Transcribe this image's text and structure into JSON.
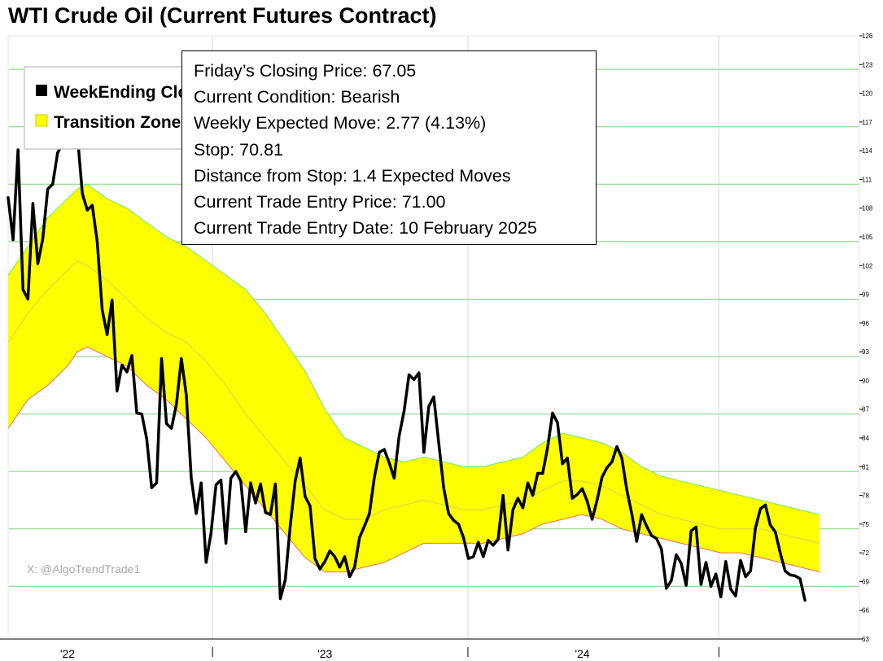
{
  "colors": {
    "price_line": "#000000",
    "zone_fill": "#ffff00",
    "zone_upper_edge": "#6ee86e",
    "zone_lower_edge": "#f06a6a",
    "zone_mid": "#d8d84a",
    "gridline": "#7fcf7f",
    "year_gridline": "#dadada",
    "legend_border": "#c8c8c8",
    "watermark": "#a8a8a8"
  },
  "watermark": "X: @AlgoTrendTrade1",
  "info": {
    "closing_price": "Friday’s Closing Price: 67.05",
    "condition": "Current Condition: Bearish",
    "expected_move": "Weekly Expected Move: 2.77 (4.13%)",
    "stop": "Stop: 70.81",
    "distance": "Distance from Stop: 1.4 Expected Moves",
    "entry_price": "Current Trade Entry Price: 71.00",
    "entry_date": "Current Trade Entry Date: 10 February 2025"
  },
  "chart_data": {
    "type": "line",
    "title": "WTI Crude Oil (Current Futures Contract)",
    "legend": {
      "placement": "top-left",
      "items": [
        {
          "label": "WeekEnding Close",
          "color": "#000000"
        },
        {
          "label": "Transition Zone",
          "color": "#ffff00"
        }
      ]
    },
    "ylim": [
      63,
      126
    ],
    "yticks": [
      63,
      66,
      69,
      72,
      75,
      78,
      81,
      84,
      87,
      90,
      93,
      96,
      99,
      102,
      105,
      108,
      111,
      114,
      117,
      120,
      123,
      126
    ],
    "xlim": [
      0,
      172
    ],
    "xticks": [
      {
        "x": 12,
        "label": "'22"
      },
      {
        "x": 64,
        "label": "'23"
      },
      {
        "x": 116,
        "label": "'24"
      }
    ],
    "year_lines": [
      41.3,
      92.9,
      143.6
    ],
    "grid": true,
    "series": [
      {
        "name": "WeekEnding Close",
        "values": [
          [
            0,
            109.1
          ],
          [
            1,
            104.7
          ],
          [
            2,
            114.1
          ],
          [
            3,
            99.5
          ],
          [
            4,
            98.5
          ],
          [
            5,
            108.5
          ],
          [
            6,
            102.2
          ],
          [
            7,
            104.8
          ],
          [
            8,
            110.0
          ],
          [
            9,
            110.5
          ],
          [
            10,
            113.8
          ],
          [
            11,
            114.7
          ],
          [
            12,
            117.2
          ],
          [
            13,
            118.0
          ],
          [
            14,
            115.6
          ],
          [
            15,
            109.5
          ],
          [
            16,
            107.8
          ],
          [
            17,
            108.3
          ],
          [
            18,
            104.5
          ],
          [
            19,
            97.4
          ],
          [
            20,
            94.8
          ],
          [
            21,
            98.4
          ],
          [
            22,
            88.9
          ],
          [
            23,
            91.6
          ],
          [
            24,
            90.9
          ],
          [
            25,
            92.6
          ],
          [
            26,
            86.6
          ],
          [
            27,
            86.5
          ],
          [
            28,
            83.9
          ],
          [
            29,
            78.8
          ],
          [
            30,
            79.3
          ],
          [
            31,
            92.3
          ],
          [
            32,
            85.5
          ],
          [
            33,
            85.0
          ],
          [
            34,
            87.5
          ],
          [
            35,
            92.3
          ],
          [
            36,
            88.5
          ],
          [
            37,
            79.8
          ],
          [
            38,
            76.1
          ],
          [
            39,
            79.3
          ],
          [
            40,
            71.0
          ],
          [
            41,
            74.1
          ],
          [
            42,
            79.1
          ],
          [
            43,
            79.6
          ],
          [
            44,
            73.0
          ],
          [
            45,
            79.8
          ],
          [
            46,
            80.5
          ],
          [
            47,
            79.5
          ],
          [
            48,
            74.2
          ],
          [
            49,
            79.3
          ],
          [
            50,
            77.2
          ],
          [
            51,
            79.2
          ],
          [
            52,
            76.2
          ],
          [
            53,
            76.0
          ],
          [
            54,
            79.2
          ],
          [
            55,
            67.2
          ],
          [
            56,
            69.2
          ],
          [
            57,
            74.8
          ],
          [
            58,
            79.5
          ],
          [
            59,
            81.9
          ],
          [
            60,
            77.9
          ],
          [
            61,
            76.9
          ],
          [
            62,
            71.4
          ],
          [
            63,
            70.3
          ],
          [
            64,
            71.1
          ],
          [
            65,
            72.2
          ],
          [
            66,
            71.6
          ],
          [
            67,
            70.5
          ],
          [
            68,
            71.6
          ],
          [
            69,
            69.5
          ],
          [
            70,
            70.5
          ],
          [
            71,
            73.6
          ],
          [
            72,
            74.8
          ],
          [
            73,
            76.1
          ],
          [
            74,
            79.9
          ],
          [
            75,
            82.5
          ],
          [
            76,
            82.8
          ],
          [
            77,
            81.4
          ],
          [
            78,
            79.8
          ],
          [
            79,
            84.2
          ],
          [
            80,
            86.8
          ],
          [
            81,
            90.6
          ],
          [
            82,
            90.1
          ],
          [
            83,
            90.8
          ],
          [
            84,
            82.5
          ],
          [
            85,
            87.3
          ],
          [
            86,
            88.3
          ],
          [
            87,
            83.5
          ],
          [
            88,
            78.8
          ],
          [
            89,
            76.1
          ],
          [
            90,
            75.4
          ],
          [
            91,
            75.0
          ],
          [
            92,
            73.6
          ],
          [
            93,
            71.4
          ],
          [
            94,
            71.6
          ],
          [
            95,
            73.1
          ],
          [
            96,
            71.6
          ],
          [
            97,
            73.3
          ],
          [
            98,
            72.8
          ],
          [
            99,
            73.4
          ],
          [
            100,
            78.0
          ],
          [
            101,
            72.3
          ],
          [
            102,
            76.5
          ],
          [
            103,
            77.7
          ],
          [
            104,
            76.7
          ],
          [
            105,
            79.3
          ],
          [
            106,
            78.0
          ],
          [
            107,
            80.3
          ],
          [
            108,
            80.3
          ],
          [
            109,
            83.0
          ],
          [
            110,
            86.6
          ],
          [
            111,
            85.6
          ],
          [
            112,
            81.3
          ],
          [
            113,
            81.9
          ],
          [
            114,
            77.7
          ],
          [
            115,
            78.1
          ],
          [
            116,
            78.7
          ],
          [
            117,
            77.4
          ],
          [
            118,
            75.5
          ],
          [
            119,
            77.5
          ],
          [
            120,
            79.9
          ],
          [
            121,
            80.9
          ],
          [
            122,
            81.5
          ],
          [
            123,
            83.1
          ],
          [
            124,
            81.9
          ],
          [
            125,
            78.6
          ],
          [
            126,
            76.1
          ],
          [
            127,
            73.2
          ],
          [
            128,
            76.0
          ],
          [
            129,
            74.8
          ],
          [
            130,
            73.8
          ],
          [
            131,
            73.5
          ],
          [
            132,
            72.4
          ],
          [
            133,
            68.3
          ],
          [
            134,
            69.1
          ],
          [
            135,
            71.8
          ],
          [
            136,
            70.9
          ],
          [
            137,
            68.6
          ],
          [
            138,
            74.3
          ],
          [
            139,
            74.7
          ],
          [
            140,
            68.7
          ],
          [
            141,
            71.0
          ],
          [
            142,
            68.5
          ],
          [
            143,
            69.8
          ],
          [
            144,
            67.4
          ],
          [
            145,
            71.1
          ],
          [
            146,
            68.2
          ],
          [
            147,
            67.5
          ],
          [
            148,
            71.2
          ],
          [
            149,
            69.5
          ],
          [
            150,
            70.1
          ],
          [
            151,
            74.6
          ],
          [
            152,
            76.6
          ],
          [
            153,
            77.0
          ],
          [
            154,
            74.9
          ],
          [
            155,
            74.2
          ],
          [
            156,
            72.0
          ],
          [
            157,
            70.1
          ],
          [
            158,
            69.7
          ],
          [
            159,
            69.6
          ],
          [
            160,
            69.3
          ],
          [
            161,
            67.05
          ]
        ]
      },
      {
        "name": "Transition Zone",
        "upper": [
          [
            0,
            101
          ],
          [
            4,
            104
          ],
          [
            8,
            107
          ],
          [
            12,
            109
          ],
          [
            14,
            110
          ],
          [
            16,
            110.5
          ],
          [
            20,
            109
          ],
          [
            24,
            108
          ],
          [
            28,
            106.5
          ],
          [
            32,
            105
          ],
          [
            36,
            104
          ],
          [
            40,
            102.5
          ],
          [
            44,
            101
          ],
          [
            48,
            99.5
          ],
          [
            52,
            97
          ],
          [
            56,
            94
          ],
          [
            60,
            91
          ],
          [
            64,
            87
          ],
          [
            68,
            84
          ],
          [
            72,
            83
          ],
          [
            76,
            82
          ],
          [
            80,
            81.5
          ],
          [
            84,
            82
          ],
          [
            88,
            81.5
          ],
          [
            92,
            81
          ],
          [
            96,
            81
          ],
          [
            100,
            81.5
          ],
          [
            104,
            82
          ],
          [
            108,
            83.5
          ],
          [
            112,
            84.5
          ],
          [
            116,
            84
          ],
          [
            120,
            83.5
          ],
          [
            124,
            82.5
          ],
          [
            128,
            81
          ],
          [
            132,
            80
          ],
          [
            136,
            79.5
          ],
          [
            140,
            79
          ],
          [
            144,
            78.5
          ],
          [
            148,
            78
          ],
          [
            152,
            77.5
          ],
          [
            156,
            77
          ],
          [
            160,
            76.5
          ],
          [
            164,
            76
          ]
        ],
        "mid": [
          [
            0,
            94
          ],
          [
            4,
            97
          ],
          [
            8,
            99.5
          ],
          [
            12,
            101.5
          ],
          [
            14,
            102.5
          ],
          [
            16,
            102
          ],
          [
            20,
            100.5
          ],
          [
            24,
            98.5
          ],
          [
            28,
            96.5
          ],
          [
            32,
            95
          ],
          [
            36,
            94
          ],
          [
            40,
            92
          ],
          [
            44,
            89.5
          ],
          [
            48,
            86.5
          ],
          [
            52,
            84
          ],
          [
            56,
            81.5
          ],
          [
            60,
            79
          ],
          [
            64,
            76.5
          ],
          [
            68,
            75.5
          ],
          [
            72,
            75.5
          ],
          [
            76,
            76.5
          ],
          [
            80,
            77
          ],
          [
            84,
            77.5
          ],
          [
            88,
            77
          ],
          [
            92,
            76.5
          ],
          [
            96,
            76.5
          ],
          [
            100,
            77
          ],
          [
            104,
            77.5
          ],
          [
            108,
            78.5
          ],
          [
            112,
            79.5
          ],
          [
            116,
            79.5
          ],
          [
            120,
            79
          ],
          [
            124,
            78
          ],
          [
            128,
            77
          ],
          [
            132,
            76
          ],
          [
            136,
            75.5
          ],
          [
            140,
            75
          ],
          [
            144,
            74.5
          ],
          [
            148,
            74.5
          ],
          [
            152,
            74.5
          ],
          [
            156,
            74
          ],
          [
            160,
            73.5
          ],
          [
            164,
            73
          ]
        ],
        "lower": [
          [
            0,
            85
          ],
          [
            4,
            88
          ],
          [
            8,
            89.5
          ],
          [
            12,
            91.5
          ],
          [
            14,
            93
          ],
          [
            16,
            93.5
          ],
          [
            20,
            92.5
          ],
          [
            24,
            91.5
          ],
          [
            28,
            89.5
          ],
          [
            32,
            88
          ],
          [
            36,
            86
          ],
          [
            40,
            84
          ],
          [
            44,
            81.5
          ],
          [
            48,
            79
          ],
          [
            52,
            76.5
          ],
          [
            56,
            74
          ],
          [
            60,
            71.5
          ],
          [
            64,
            70
          ],
          [
            68,
            70
          ],
          [
            72,
            70.5
          ],
          [
            76,
            71
          ],
          [
            80,
            72
          ],
          [
            84,
            73
          ],
          [
            88,
            73
          ],
          [
            92,
            73
          ],
          [
            96,
            73
          ],
          [
            100,
            73.5
          ],
          [
            104,
            74
          ],
          [
            108,
            75
          ],
          [
            112,
            75.5
          ],
          [
            116,
            76
          ],
          [
            120,
            75.5
          ],
          [
            124,
            74.5
          ],
          [
            128,
            74
          ],
          [
            132,
            73.5
          ],
          [
            136,
            73
          ],
          [
            140,
            72.5
          ],
          [
            144,
            72
          ],
          [
            148,
            72
          ],
          [
            152,
            71.5
          ],
          [
            156,
            71
          ],
          [
            160,
            70.5
          ],
          [
            164,
            70
          ]
        ]
      }
    ]
  }
}
